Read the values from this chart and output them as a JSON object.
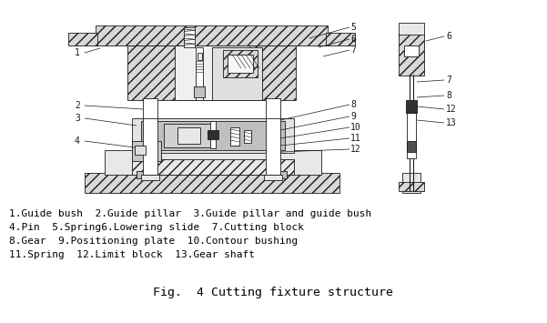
{
  "title": "Fig.  4 Cutting fixture structure",
  "legend_lines": [
    "1.Guide bush  2.Guide pillar  3.Guide pillar and guide bush",
    "4.Pin  5.Spring6.Lowering slide  7.Cutting block",
    "8.Gear  9.Positioning plate  10.Contour bushing",
    "11.Spring  12.Limit block  13.Gear shaft"
  ],
  "bg_color": "#ffffff",
  "text_color": "#000000",
  "line_color": "#1a1a1a",
  "fig_width": 6.01,
  "fig_height": 3.55,
  "dpi": 100,
  "hatch_gray": "#d8d8d8",
  "light_gray": "#e8e8e8",
  "mid_gray": "#c0c0c0",
  "dark_gray": "#808080",
  "very_dark": "#303030"
}
